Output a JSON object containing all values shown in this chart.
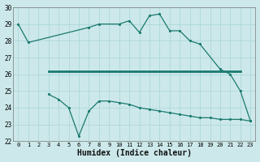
{
  "xlabel": "Humidex (Indice chaleur)",
  "color": "#1a7a6e",
  "bg_color": "#cce8ea",
  "grid_color": "#a8d4d6",
  "ylim": [
    22,
    30
  ],
  "yticks": [
    22,
    23,
    24,
    25,
    26,
    27,
    28,
    29,
    30
  ],
  "xlim": [
    0,
    23
  ],
  "xticks": [
    0,
    1,
    2,
    3,
    4,
    5,
    6,
    7,
    8,
    9,
    10,
    11,
    12,
    13,
    14,
    15,
    16,
    17,
    18,
    19,
    20,
    21,
    22,
    23
  ],
  "line_top_x": [
    0,
    1,
    7,
    8,
    10,
    11,
    12,
    13,
    14,
    15,
    16,
    17,
    18,
    20,
    21,
    22,
    23
  ],
  "line_top_y": [
    29.0,
    27.9,
    28.8,
    29.0,
    29.0,
    29.2,
    28.5,
    29.5,
    29.6,
    28.6,
    28.6,
    28.0,
    27.8,
    26.3,
    26.0,
    25.0,
    23.2
  ],
  "line_flat_x": [
    3,
    4,
    5,
    6,
    7,
    8,
    9,
    10,
    11,
    12,
    13,
    14,
    15,
    16,
    17,
    18,
    19,
    20,
    21,
    22
  ],
  "line_flat_y": [
    26.2,
    26.2,
    26.2,
    26.2,
    26.2,
    26.2,
    26.2,
    26.2,
    26.2,
    26.2,
    26.2,
    26.2,
    26.2,
    26.2,
    26.2,
    26.2,
    26.2,
    26.2,
    26.2,
    26.2
  ],
  "line_bot_x": [
    3,
    4,
    5,
    6,
    7,
    8,
    9,
    10,
    11,
    12,
    13,
    14,
    15,
    16,
    17,
    18,
    19,
    20,
    21,
    22,
    23
  ],
  "line_bot_y": [
    24.8,
    24.5,
    24.0,
    22.3,
    23.8,
    24.4,
    24.4,
    24.3,
    24.2,
    24.0,
    23.9,
    23.8,
    23.7,
    23.6,
    23.5,
    23.4,
    23.4,
    23.3,
    23.3,
    23.3,
    23.2
  ]
}
